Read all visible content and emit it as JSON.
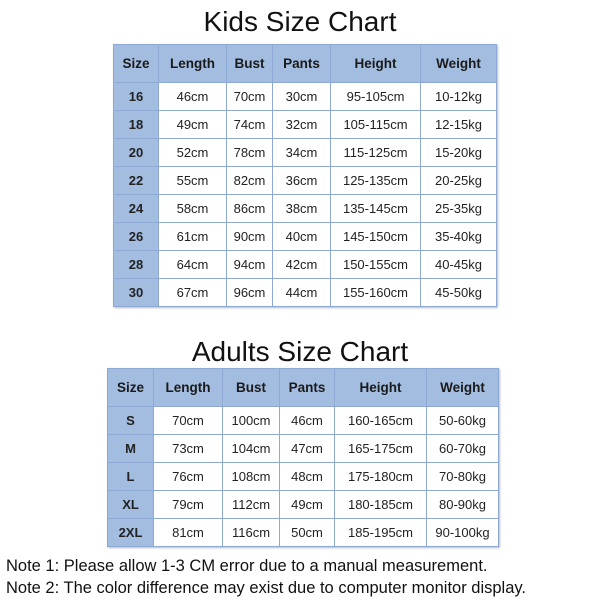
{
  "kids": {
    "title": "Kids Size Chart",
    "headers": [
      "Size",
      "Length",
      "Bust",
      "Pants",
      "Height",
      "Weight"
    ],
    "rows": [
      [
        "16",
        "46cm",
        "70cm",
        "30cm",
        "95-105cm",
        "10-12kg"
      ],
      [
        "18",
        "49cm",
        "74cm",
        "32cm",
        "105-115cm",
        "12-15kg"
      ],
      [
        "20",
        "52cm",
        "78cm",
        "34cm",
        "115-125cm",
        "15-20kg"
      ],
      [
        "22",
        "55cm",
        "82cm",
        "36cm",
        "125-135cm",
        "20-25kg"
      ],
      [
        "24",
        "58cm",
        "86cm",
        "38cm",
        "135-145cm",
        "25-35kg"
      ],
      [
        "26",
        "61cm",
        "90cm",
        "40cm",
        "145-150cm",
        "35-40kg"
      ],
      [
        "28",
        "64cm",
        "94cm",
        "42cm",
        "150-155cm",
        "40-45kg"
      ],
      [
        "30",
        "67cm",
        "96cm",
        "44cm",
        "155-160cm",
        "45-50kg"
      ]
    ]
  },
  "adults": {
    "title": "Adults Size Chart",
    "headers": [
      "Size",
      "Length",
      "Bust",
      "Pants",
      "Height",
      "Weight"
    ],
    "rows": [
      [
        "S",
        "70cm",
        "100cm",
        "46cm",
        "160-165cm",
        "50-60kg"
      ],
      [
        "M",
        "73cm",
        "104cm",
        "47cm",
        "165-175cm",
        "60-70kg"
      ],
      [
        "L",
        "76cm",
        "108cm",
        "48cm",
        "175-180cm",
        "70-80kg"
      ],
      [
        "XL",
        "79cm",
        "112cm",
        "49cm",
        "180-185cm",
        "80-90kg"
      ],
      [
        "2XL",
        "81cm",
        "116cm",
        "50cm",
        "185-195cm",
        "90-100kg"
      ]
    ]
  },
  "notes": [
    "Note 1: Please allow 1-3 CM error due to a manual measurement.",
    "Note 2: The color difference may exist due to computer monitor display."
  ],
  "colors": {
    "header_bg": "#a3bde0",
    "border": "#8eaad4"
  }
}
